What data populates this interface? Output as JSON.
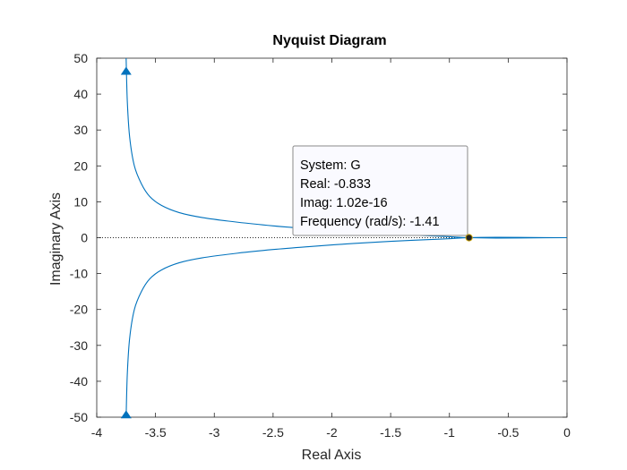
{
  "chart_data": {
    "type": "line",
    "title": "Nyquist Diagram",
    "xlabel": "Real Axis",
    "ylabel": "Imaginary Axis",
    "xlim": [
      -4,
      0
    ],
    "ylim": [
      -50,
      50
    ],
    "xticks": [
      -4,
      -3.5,
      -3,
      -2.5,
      -2,
      -1.5,
      -1,
      -0.5,
      0
    ],
    "yticks": [
      -50,
      -40,
      -30,
      -20,
      -10,
      0,
      10,
      20,
      30,
      40,
      50
    ],
    "xtick_labels": [
      "-4",
      "-3.5",
      "-3",
      "-2.5",
      "-2",
      "-1.5",
      "-1",
      "-0.5",
      "0"
    ],
    "ytick_labels": [
      "-50",
      "-40",
      "-30",
      "-20",
      "-10",
      "0",
      "10",
      "20",
      "30",
      "40",
      "50"
    ],
    "grid": false,
    "series": [
      {
        "color": "#0072BD",
        "x": [
          -3.75,
          -3.74,
          -3.72,
          -3.68,
          -3.62,
          -3.55,
          -3.45,
          -3.3,
          -3.1,
          -2.8,
          -2.5,
          -2.2,
          -1.9,
          -1.6,
          -1.3,
          -1.05,
          -0.833,
          -0.6,
          -0.3,
          0
        ],
        "y": [
          50,
          38,
          28,
          20,
          15,
          11.5,
          9,
          7,
          5.6,
          4.3,
          3.3,
          2.5,
          1.8,
          1.2,
          0.7,
          0.35,
          0,
          -0.1,
          -0.05,
          0
        ]
      },
      {
        "color": "#0072BD",
        "x": [
          -3.75,
          -3.74,
          -3.72,
          -3.68,
          -3.62,
          -3.55,
          -3.45,
          -3.3,
          -3.1,
          -2.8,
          -2.5,
          -2.2,
          -1.9,
          -1.6,
          -1.3,
          -1.05,
          -0.833,
          -0.6,
          -0.3,
          0
        ],
        "y": [
          -50,
          -38,
          -28,
          -20,
          -15,
          -11.5,
          -9,
          -7,
          -5.6,
          -4.3,
          -3.3,
          -2.5,
          -1.8,
          -1.2,
          -0.7,
          -0.35,
          0,
          0.1,
          0.05,
          0
        ]
      }
    ],
    "arrows": [
      {
        "x": -3.75,
        "y": 46.5,
        "direction": "up"
      },
      {
        "x": -3.75,
        "y": -49.2,
        "direction": "up"
      }
    ],
    "zero_line": {
      "y": 0,
      "style": "dotted"
    },
    "datatip": {
      "x": -0.833,
      "y": 0,
      "lines": [
        "System: G",
        "Real: -0.833",
        "Imag: 1.02e-16",
        "Frequency (rad/s): -1.41"
      ]
    }
  }
}
